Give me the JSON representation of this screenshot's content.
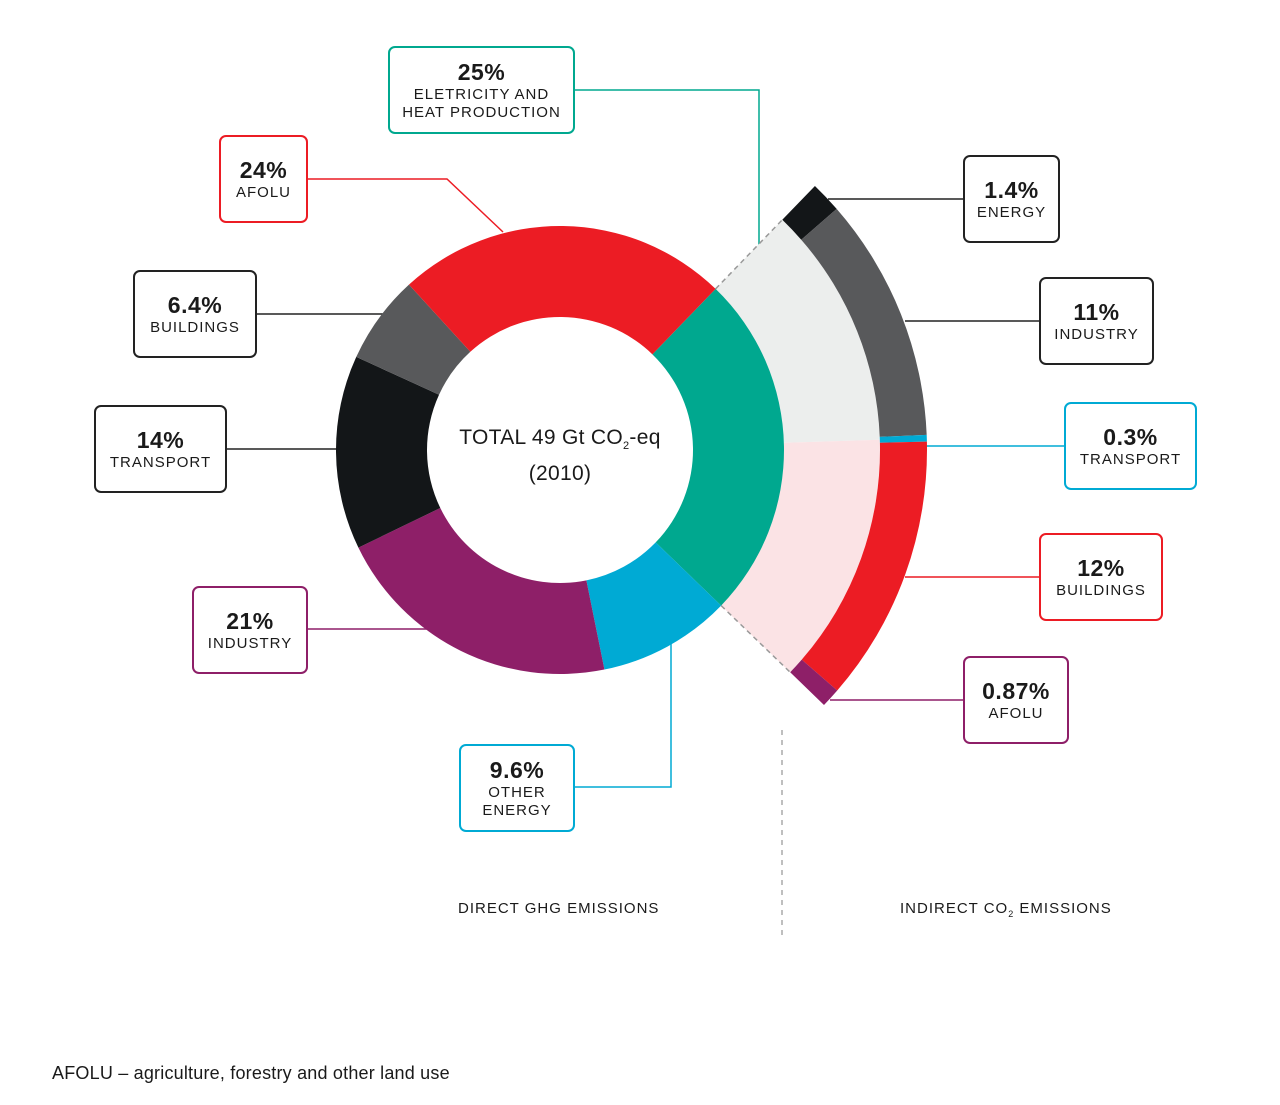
{
  "chart_data": {
    "type": "pie",
    "title_prefix": "TOTAL 49 Gt CO",
    "title_sub": "2",
    "title_suffix": "-eq",
    "title_year": "(2010)",
    "direct_label": "DIRECT GHG EMISSIONS",
    "indirect_label_prefix": "INDIRECT CO",
    "indirect_label_sub": "2",
    "indirect_label_suffix": " EMISSIONS",
    "footnote": "AFOLU – agriculture, forestry and other land use",
    "direct": [
      {
        "pct": "25%",
        "value": 25,
        "name": "ELETRICITY AND\nHEAT PRODUCTION",
        "color": "#00a88f"
      },
      {
        "pct": "9.6%",
        "value": 9.6,
        "name": "OTHER\nENERGY",
        "color": "#00aad4"
      },
      {
        "pct": "21%",
        "value": 21,
        "name": "INDUSTRY",
        "color": "#8e1f68"
      },
      {
        "pct": "14%",
        "value": 14,
        "name": "TRANSPORT",
        "color": "#131618"
      },
      {
        "pct": "6.4%",
        "value": 6.4,
        "name": "BUILDINGS",
        "color": "#58595b"
      },
      {
        "pct": "24%",
        "value": 24,
        "name": "AFOLU",
        "color": "#ec1c24"
      }
    ],
    "indirect": [
      {
        "pct": "1.4%",
        "value": 1.4,
        "name": "ENERGY",
        "color": "#131618"
      },
      {
        "pct": "11%",
        "value": 11,
        "name": "INDUSTRY",
        "color": "#58595b"
      },
      {
        "pct": "0.3%",
        "value": 0.3,
        "name": "TRANSPORT",
        "color": "#00aad4"
      },
      {
        "pct": "12%",
        "value": 12,
        "name": "BUILDINGS",
        "color": "#ec1c24"
      },
      {
        "pct": "0.87%",
        "value": 0.87,
        "name": "AFOLU",
        "color": "#8e1f68"
      }
    ]
  }
}
